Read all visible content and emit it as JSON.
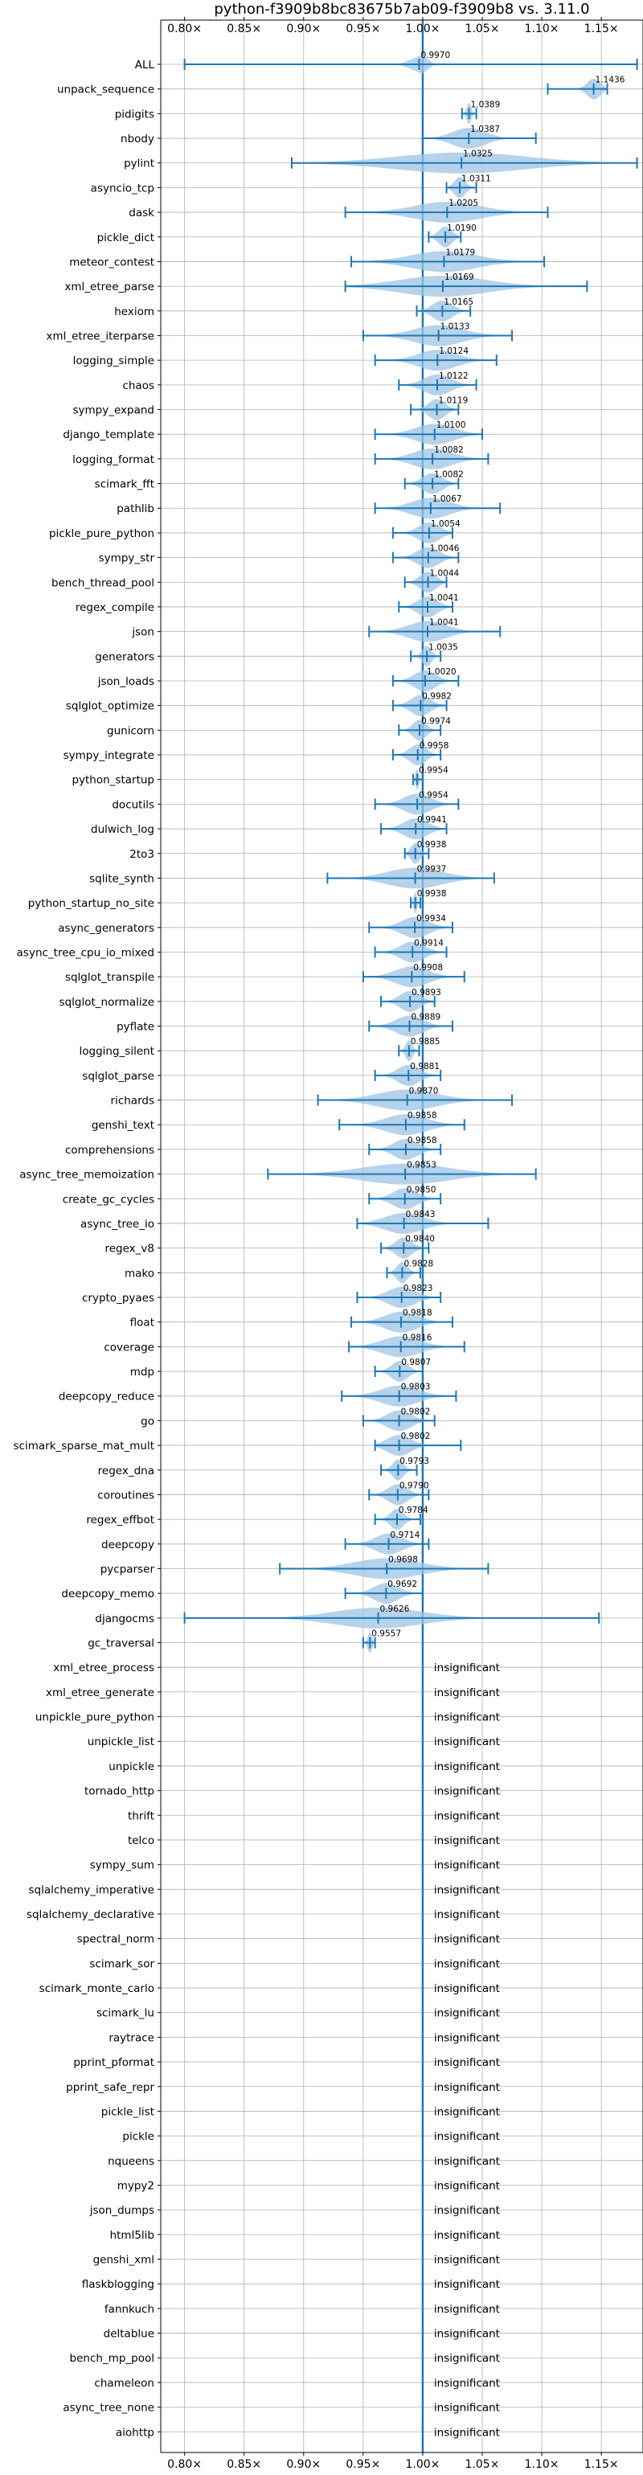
{
  "chart_data": {
    "type": "violin",
    "title": "python-f3909b8bc83675b7ab09-f3909b8 vs. 3.11.0",
    "xlim": [
      0.78,
      1.185
    ],
    "xticks": [
      0.8,
      0.85,
      0.9,
      0.95,
      1.0,
      1.05,
      1.1,
      1.15
    ],
    "xtick_labels": [
      "0.80×",
      "0.85×",
      "0.90×",
      "0.95×",
      "1.00×",
      "1.05×",
      "1.10×",
      "1.15×"
    ],
    "reference_line": 1.0,
    "grid": true,
    "colors": {
      "violin": "#9ec4e4",
      "whisker": "#1f77b4",
      "reference": "#1f77b4",
      "grid": "#b0b0b0"
    },
    "insignificant_text": "insignificant",
    "benchmarks": [
      {
        "name": "ALL",
        "mean": 0.997,
        "label": "0.9970",
        "min": 0.8,
        "max": 1.18,
        "spread": 0.012
      },
      {
        "name": "unpack_sequence",
        "mean": 1.1436,
        "label": "1.1436",
        "min": 1.105,
        "max": 1.155,
        "spread": 0.012
      },
      {
        "name": "pidigits",
        "mean": 1.0389,
        "label": "1.0389",
        "min": 1.033,
        "max": 1.045,
        "spread": 0.004
      },
      {
        "name": "nbody",
        "mean": 1.0387,
        "label": "1.0387",
        "min": 1.0,
        "max": 1.095,
        "spread": 0.03
      },
      {
        "name": "pylint",
        "mean": 1.0325,
        "label": "1.0325",
        "min": 0.89,
        "max": 1.18,
        "spread": 0.12
      },
      {
        "name": "asyncio_tcp",
        "mean": 1.0311,
        "label": "1.0311",
        "min": 1.02,
        "max": 1.045,
        "spread": 0.01
      },
      {
        "name": "dask",
        "mean": 1.0205,
        "label": "1.0205",
        "min": 0.935,
        "max": 1.105,
        "spread": 0.06
      },
      {
        "name": "pickle_dict",
        "mean": 1.019,
        "label": "1.0190",
        "min": 1.005,
        "max": 1.032,
        "spread": 0.012
      },
      {
        "name": "meteor_contest",
        "mean": 1.0179,
        "label": "1.0179",
        "min": 0.94,
        "max": 1.102,
        "spread": 0.06
      },
      {
        "name": "xml_etree_parse",
        "mean": 1.0169,
        "label": "1.0169",
        "min": 0.935,
        "max": 1.138,
        "spread": 0.08
      },
      {
        "name": "hexiom",
        "mean": 1.0165,
        "label": "1.0165",
        "min": 0.995,
        "max": 1.04,
        "spread": 0.018
      },
      {
        "name": "xml_etree_iterparse",
        "mean": 1.0133,
        "label": "1.0133",
        "min": 0.95,
        "max": 1.075,
        "spread": 0.045
      },
      {
        "name": "logging_simple",
        "mean": 1.0124,
        "label": "1.0124",
        "min": 0.96,
        "max": 1.062,
        "spread": 0.035
      },
      {
        "name": "chaos",
        "mean": 1.0122,
        "label": "1.0122",
        "min": 0.98,
        "max": 1.045,
        "spread": 0.025
      },
      {
        "name": "sympy_expand",
        "mean": 1.0119,
        "label": "1.0119",
        "min": 0.99,
        "max": 1.03,
        "spread": 0.015
      },
      {
        "name": "django_template",
        "mean": 1.01,
        "label": "1.0100",
        "min": 0.96,
        "max": 1.05,
        "spread": 0.035
      },
      {
        "name": "logging_format",
        "mean": 1.0082,
        "label": "1.0082",
        "min": 0.96,
        "max": 1.055,
        "spread": 0.035
      },
      {
        "name": "scimark_fft",
        "mean": 1.0082,
        "label": "1.0082",
        "min": 0.985,
        "max": 1.03,
        "spread": 0.018
      },
      {
        "name": "pathlib",
        "mean": 1.0067,
        "label": "1.0067",
        "min": 0.96,
        "max": 1.065,
        "spread": 0.035
      },
      {
        "name": "pickle_pure_python",
        "mean": 1.0054,
        "label": "1.0054",
        "min": 0.975,
        "max": 1.025,
        "spread": 0.02
      },
      {
        "name": "sympy_str",
        "mean": 1.0046,
        "label": "1.0046",
        "min": 0.975,
        "max": 1.03,
        "spread": 0.02
      },
      {
        "name": "bench_thread_pool",
        "mean": 1.0044,
        "label": "1.0044",
        "min": 0.985,
        "max": 1.02,
        "spread": 0.015
      },
      {
        "name": "regex_compile",
        "mean": 1.0041,
        "label": "1.0041",
        "min": 0.98,
        "max": 1.025,
        "spread": 0.018
      },
      {
        "name": "json",
        "mean": 1.0041,
        "label": "1.0041",
        "min": 0.955,
        "max": 1.065,
        "spread": 0.035
      },
      {
        "name": "generators",
        "mean": 1.0035,
        "label": "1.0035",
        "min": 0.99,
        "max": 1.015,
        "spread": 0.008
      },
      {
        "name": "json_loads",
        "mean": 1.002,
        "label": "1.0020",
        "min": 0.975,
        "max": 1.03,
        "spread": 0.02
      },
      {
        "name": "sqlglot_optimize",
        "mean": 0.9982,
        "label": "0.9982",
        "min": 0.975,
        "max": 1.02,
        "spread": 0.018
      },
      {
        "name": "gunicorn",
        "mean": 0.9974,
        "label": "0.9974",
        "min": 0.98,
        "max": 1.015,
        "spread": 0.012
      },
      {
        "name": "sympy_integrate",
        "mean": 0.9958,
        "label": "0.9958",
        "min": 0.975,
        "max": 1.015,
        "spread": 0.015
      },
      {
        "name": "python_startup",
        "mean": 0.9954,
        "label": "0.9954",
        "min": 0.992,
        "max": 1.0,
        "spread": 0.003
      },
      {
        "name": "docutils",
        "mean": 0.9954,
        "label": "0.9954",
        "min": 0.96,
        "max": 1.03,
        "spread": 0.025
      },
      {
        "name": "dulwich_log",
        "mean": 0.9941,
        "label": "0.9941",
        "min": 0.965,
        "max": 1.02,
        "spread": 0.022
      },
      {
        "name": "2to3",
        "mean": 0.9938,
        "label": "0.9938",
        "min": 0.985,
        "max": 1.005,
        "spread": 0.008
      },
      {
        "name": "sqlite_synth",
        "mean": 0.9937,
        "label": "0.9937",
        "min": 0.92,
        "max": 1.06,
        "spread": 0.05
      },
      {
        "name": "python_startup_no_site",
        "mean": 0.9938,
        "label": "0.9938",
        "min": 0.99,
        "max": 0.998,
        "spread": 0.003
      },
      {
        "name": "async_generators",
        "mean": 0.9934,
        "label": "0.9934",
        "min": 0.955,
        "max": 1.025,
        "spread": 0.025
      },
      {
        "name": "async_tree_cpu_io_mixed",
        "mean": 0.9914,
        "label": "0.9914",
        "min": 0.96,
        "max": 1.02,
        "spread": 0.022
      },
      {
        "name": "sqlglot_transpile",
        "mean": 0.9908,
        "label": "0.9908",
        "min": 0.95,
        "max": 1.035,
        "spread": 0.03
      },
      {
        "name": "sqlglot_normalize",
        "mean": 0.9893,
        "label": "0.9893",
        "min": 0.965,
        "max": 1.01,
        "spread": 0.018
      },
      {
        "name": "pyflate",
        "mean": 0.9889,
        "label": "0.9889",
        "min": 0.955,
        "max": 1.025,
        "spread": 0.025
      },
      {
        "name": "logging_silent",
        "mean": 0.9885,
        "label": "0.9885",
        "min": 0.98,
        "max": 0.997,
        "spread": 0.006
      },
      {
        "name": "sqlglot_parse",
        "mean": 0.9881,
        "label": "0.9881",
        "min": 0.96,
        "max": 1.015,
        "spread": 0.02
      },
      {
        "name": "richards",
        "mean": 0.987,
        "label": "0.9870",
        "min": 0.912,
        "max": 1.075,
        "spread": 0.055
      },
      {
        "name": "genshi_text",
        "mean": 0.9858,
        "label": "0.9858",
        "min": 0.93,
        "max": 1.035,
        "spread": 0.038
      },
      {
        "name": "comprehensions",
        "mean": 0.9858,
        "label": "0.9858",
        "min": 0.955,
        "max": 1.015,
        "spread": 0.022
      },
      {
        "name": "async_tree_memoization",
        "mean": 0.9853,
        "label": "0.9853",
        "min": 0.87,
        "max": 1.095,
        "spread": 0.08
      },
      {
        "name": "create_gc_cycles",
        "mean": 0.985,
        "label": "0.9850",
        "min": 0.955,
        "max": 1.015,
        "spread": 0.022
      },
      {
        "name": "async_tree_io",
        "mean": 0.9843,
        "label": "0.9843",
        "min": 0.945,
        "max": 1.055,
        "spread": 0.035
      },
      {
        "name": "regex_v8",
        "mean": 0.984,
        "label": "0.9840",
        "min": 0.965,
        "max": 1.005,
        "spread": 0.015
      },
      {
        "name": "mako",
        "mean": 0.9828,
        "label": "0.9828",
        "min": 0.97,
        "max": 0.998,
        "spread": 0.01
      },
      {
        "name": "crypto_pyaes",
        "mean": 0.9823,
        "label": "0.9823",
        "min": 0.945,
        "max": 1.015,
        "spread": 0.025
      },
      {
        "name": "float",
        "mean": 0.9818,
        "label": "0.9818",
        "min": 0.94,
        "max": 1.025,
        "spread": 0.03
      },
      {
        "name": "coverage",
        "mean": 0.9816,
        "label": "0.9816",
        "min": 0.938,
        "max": 1.035,
        "spread": 0.035
      },
      {
        "name": "mdp",
        "mean": 0.9807,
        "label": "0.9807",
        "min": 0.96,
        "max": 1.0,
        "spread": 0.015
      },
      {
        "name": "deepcopy_reduce",
        "mean": 0.9803,
        "label": "0.9803",
        "min": 0.932,
        "max": 1.028,
        "spread": 0.035
      },
      {
        "name": "go",
        "mean": 0.9802,
        "label": "0.9802",
        "min": 0.95,
        "max": 1.01,
        "spread": 0.022
      },
      {
        "name": "scimark_sparse_mat_mult",
        "mean": 0.9802,
        "label": "0.9802",
        "min": 0.96,
        "max": 1.032,
        "spread": 0.022
      },
      {
        "name": "regex_dna",
        "mean": 0.9793,
        "label": "0.9793",
        "min": 0.965,
        "max": 0.995,
        "spread": 0.01
      },
      {
        "name": "coroutines",
        "mean": 0.979,
        "label": "0.9790",
        "min": 0.955,
        "max": 1.005,
        "spread": 0.018
      },
      {
        "name": "regex_effbot",
        "mean": 0.9784,
        "label": "0.9784",
        "min": 0.96,
        "max": 0.998,
        "spread": 0.012
      },
      {
        "name": "deepcopy",
        "mean": 0.9714,
        "label": "0.9714",
        "min": 0.935,
        "max": 1.005,
        "spread": 0.025
      },
      {
        "name": "pycparser",
        "mean": 0.9698,
        "label": "0.9698",
        "min": 0.88,
        "max": 1.055,
        "spread": 0.06
      },
      {
        "name": "deepcopy_memo",
        "mean": 0.9692,
        "label": "0.9692",
        "min": 0.935,
        "max": 1.0,
        "spread": 0.022
      },
      {
        "name": "djangocms",
        "mean": 0.9626,
        "label": "0.9626",
        "min": 0.8,
        "max": 1.148,
        "spread": 0.08
      },
      {
        "name": "gc_traversal",
        "mean": 0.9557,
        "label": "0.9557",
        "min": 0.95,
        "max": 0.96,
        "spread": 0.004
      },
      {
        "name": "xml_etree_process",
        "insignificant": true
      },
      {
        "name": "xml_etree_generate",
        "insignificant": true
      },
      {
        "name": "unpickle_pure_python",
        "insignificant": true
      },
      {
        "name": "unpickle_list",
        "insignificant": true
      },
      {
        "name": "unpickle",
        "insignificant": true
      },
      {
        "name": "tornado_http",
        "insignificant": true
      },
      {
        "name": "thrift",
        "insignificant": true
      },
      {
        "name": "telco",
        "insignificant": true
      },
      {
        "name": "sympy_sum",
        "insignificant": true
      },
      {
        "name": "sqlalchemy_imperative",
        "insignificant": true
      },
      {
        "name": "sqlalchemy_declarative",
        "insignificant": true
      },
      {
        "name": "spectral_norm",
        "insignificant": true
      },
      {
        "name": "scimark_sor",
        "insignificant": true
      },
      {
        "name": "scimark_monte_carlo",
        "insignificant": true
      },
      {
        "name": "scimark_lu",
        "insignificant": true
      },
      {
        "name": "raytrace",
        "insignificant": true
      },
      {
        "name": "pprint_pformat",
        "insignificant": true
      },
      {
        "name": "pprint_safe_repr",
        "insignificant": true
      },
      {
        "name": "pickle_list",
        "insignificant": true
      },
      {
        "name": "pickle",
        "insignificant": true
      },
      {
        "name": "nqueens",
        "insignificant": true
      },
      {
        "name": "mypy2",
        "insignificant": true
      },
      {
        "name": "json_dumps",
        "insignificant": true
      },
      {
        "name": "html5lib",
        "insignificant": true
      },
      {
        "name": "genshi_xml",
        "insignificant": true
      },
      {
        "name": "flaskblogging",
        "insignificant": true
      },
      {
        "name": "fannkuch",
        "insignificant": true
      },
      {
        "name": "deltablue",
        "insignificant": true
      },
      {
        "name": "bench_mp_pool",
        "insignificant": true
      },
      {
        "name": "chameleon",
        "insignificant": true
      },
      {
        "name": "async_tree_none",
        "insignificant": true
      },
      {
        "name": "aiohttp",
        "insignificant": true
      }
    ]
  }
}
